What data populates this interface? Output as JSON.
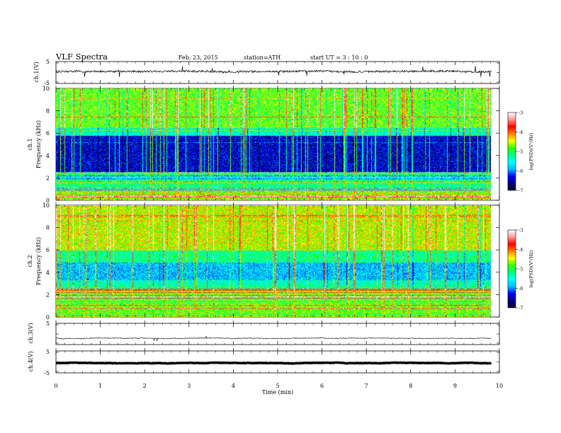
{
  "header": {
    "title": "VLF  Spectra",
    "date": "Feb. 23, 2015",
    "station": "station=ATH",
    "start": "start  UT  =   3  : 10 : 0"
  },
  "chart_data": [
    {
      "type": "line",
      "panel": "ch1-waveform",
      "ylabel": "ch.1(V)",
      "ylim": [
        -5,
        5
      ],
      "yticks": [
        "5",
        "-5"
      ],
      "xlim": [
        0,
        10
      ],
      "level": 0.5
    },
    {
      "type": "heatmap",
      "panel": "ch1-spectrogram",
      "ylabel": [
        "ch.1",
        "Frequency  (kHz)"
      ],
      "ylim": [
        0,
        10
      ],
      "yticks": [
        "0",
        "2",
        "4",
        "6",
        "8",
        "10"
      ],
      "xlim": [
        0,
        10
      ],
      "colorbar": {
        "label": "log(PSD)(V²/Hz)",
        "range": [
          -7,
          -3
        ],
        "ticks": [
          "-3",
          "-4",
          "-5",
          "-6",
          "-7"
        ]
      }
    },
    {
      "type": "heatmap",
      "panel": "ch2-spectrogram",
      "ylabel": [
        "ch.2",
        "Frequency  (kHz)"
      ],
      "ylim": [
        0,
        10
      ],
      "yticks": [
        "0",
        "2",
        "4",
        "6",
        "8",
        "10"
      ],
      "xlim": [
        0,
        10
      ],
      "colorbar": {
        "label": "log(PSD)(V²/Hz)",
        "range": [
          -7,
          -3
        ],
        "ticks": [
          "-3",
          "-4",
          "-5",
          "-6",
          "-7"
        ]
      }
    },
    {
      "type": "line",
      "panel": "ch3-waveform",
      "ylabel": "ch.3(V)",
      "ylim": [
        -5,
        5
      ],
      "yticks": [
        "5",
        "-5"
      ],
      "xlim": [
        0,
        10
      ],
      "level": -2
    },
    {
      "type": "line",
      "panel": "ch4-waveform",
      "ylabel": "ch.4(V)",
      "ylim": [
        -5,
        5
      ],
      "yticks": [
        "5",
        "-5"
      ],
      "xlim": [
        0,
        10
      ],
      "level": -0.5
    }
  ],
  "xaxis": {
    "label": "Time  (min)",
    "ticks": [
      "0",
      "1",
      "2",
      "3",
      "4",
      "5",
      "6",
      "7",
      "8",
      "9",
      "10"
    ],
    "data_end": 9.82
  },
  "colors": {
    "spectrum": [
      "#000033",
      "#000080",
      "#0000ff",
      "#00bfff",
      "#00ffff",
      "#00ff80",
      "#33ff00",
      "#ffff00",
      "#ff8000",
      "#ff0000",
      "#ff9999",
      "#ffffff"
    ]
  }
}
